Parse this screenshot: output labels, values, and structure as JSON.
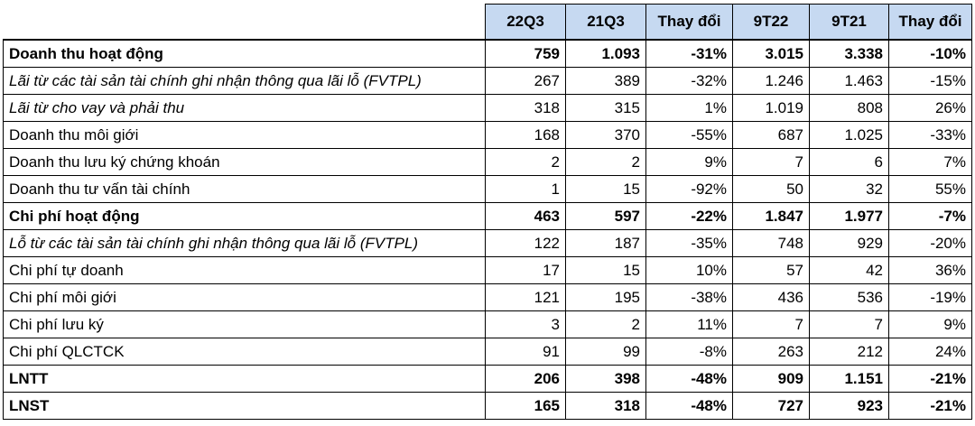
{
  "header": [
    "",
    "22Q3",
    "21Q3",
    "Thay đổi",
    "9T22",
    "9T21",
    "Thay đổi"
  ],
  "rows": [
    {
      "label": "Doanh thu hoạt động",
      "style": "bold",
      "v": [
        "759",
        "1.093",
        "-31%",
        "3.015",
        "3.338",
        "-10%"
      ]
    },
    {
      "label": "Lãi từ các tài sản tài chính ghi nhận thông qua lãi lỗ (FVTPL)",
      "style": "italic",
      "v": [
        "267",
        "389",
        "-32%",
        "1.246",
        "1.463",
        "-15%"
      ]
    },
    {
      "label": "Lãi từ cho vay và phải thu",
      "style": "italic",
      "v": [
        "318",
        "315",
        "1%",
        "1.019",
        "808",
        "26%"
      ]
    },
    {
      "label": "Doanh thu môi giới",
      "style": "normal",
      "v": [
        "168",
        "370",
        "-55%",
        "687",
        "1.025",
        "-33%"
      ]
    },
    {
      "label": "Doanh thu lưu ký chứng khoán",
      "style": "normal",
      "v": [
        "2",
        "2",
        "9%",
        "7",
        "6",
        "7%"
      ]
    },
    {
      "label": "Doanh thu tư vấn tài chính",
      "style": "normal",
      "v": [
        "1",
        "15",
        "-92%",
        "50",
        "32",
        "55%"
      ]
    },
    {
      "label": "Chi phí hoạt động",
      "style": "bold",
      "v": [
        "463",
        "597",
        "-22%",
        "1.847",
        "1.977",
        "-7%"
      ]
    },
    {
      "label": "Lỗ từ các tài sản tài chính ghi nhận thông qua lãi lỗ (FVTPL)",
      "style": "italic",
      "v": [
        "122",
        "187",
        "-35%",
        "748",
        "929",
        "-20%"
      ]
    },
    {
      "label": "Chi phí tự doanh",
      "style": "normal",
      "v": [
        "17",
        "15",
        "10%",
        "57",
        "42",
        "36%"
      ]
    },
    {
      "label": "Chi phí môi giới",
      "style": "normal",
      "v": [
        "121",
        "195",
        "-38%",
        "436",
        "536",
        "-19%"
      ]
    },
    {
      "label": "Chi phí lưu ký",
      "style": "normal",
      "v": [
        "3",
        "2",
        "11%",
        "7",
        "7",
        "9%"
      ]
    },
    {
      "label": "Chi phí QLCTCK",
      "style": "normal",
      "v": [
        "91",
        "99",
        "-8%",
        "263",
        "212",
        "24%"
      ]
    },
    {
      "label": "LNTT",
      "style": "bold",
      "v": [
        "206",
        "398",
        "-48%",
        "909",
        "1.151",
        "-21%"
      ]
    },
    {
      "label": "LNST",
      "style": "bold",
      "v": [
        "165",
        "318",
        "-48%",
        "727",
        "923",
        "-21%"
      ]
    }
  ]
}
